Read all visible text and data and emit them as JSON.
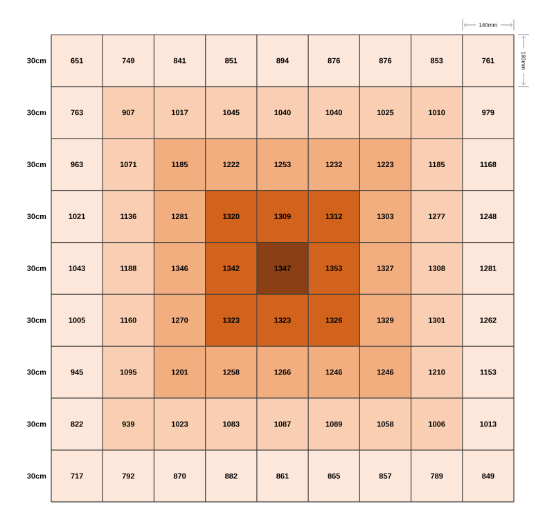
{
  "chart_data": {
    "type": "heatmap",
    "categories": [
      null,
      null,
      null,
      null,
      null,
      null,
      null,
      null,
      null
    ],
    "y_categories": [
      "30cm",
      "30cm",
      "30cm",
      "30cm",
      "30cm",
      "30cm",
      "30cm",
      "30cm",
      "30cm"
    ],
    "cells": [
      [
        651,
        749,
        841,
        851,
        894,
        876,
        876,
        853,
        761
      ],
      [
        763,
        907,
        1017,
        1045,
        1040,
        1040,
        1025,
        1010,
        979
      ],
      [
        963,
        1071,
        1185,
        1222,
        1253,
        1232,
        1223,
        1185,
        1168
      ],
      [
        1021,
        1136,
        1281,
        1320,
        1309,
        1312,
        1303,
        1277,
        1248
      ],
      [
        1043,
        1188,
        1346,
        1342,
        1347,
        1353,
        1327,
        1308,
        1281
      ],
      [
        1005,
        1160,
        1270,
        1323,
        1323,
        1326,
        1329,
        1301,
        1262
      ],
      [
        945,
        1095,
        1201,
        1258,
        1266,
        1246,
        1246,
        1210,
        1153
      ],
      [
        822,
        939,
        1023,
        1083,
        1087,
        1089,
        1058,
        1006,
        1013
      ],
      [
        717,
        792,
        870,
        882,
        861,
        865,
        857,
        789,
        849
      ]
    ],
    "colors": [
      [
        "#fde6da",
        "#fde6da",
        "#fde6da",
        "#fde6da",
        "#fde6da",
        "#fde6da",
        "#fde6da",
        "#fde6da",
        "#fde6da"
      ],
      [
        "#fde6da",
        "#f9ceb2",
        "#f9ceb2",
        "#f9ceb2",
        "#f9ceb2",
        "#f9ceb2",
        "#f9ceb2",
        "#f9ceb2",
        "#fde6da"
      ],
      [
        "#fde6da",
        "#f9ceb2",
        "#f3ae80",
        "#f3ae80",
        "#f3ae80",
        "#f3ae80",
        "#f3ae80",
        "#f9ceb2",
        "#fde6da"
      ],
      [
        "#fde6da",
        "#f9ceb2",
        "#f3ae80",
        "#d2631c",
        "#d2631c",
        "#d2631c",
        "#f3ae80",
        "#f9ceb2",
        "#fde6da"
      ],
      [
        "#fde6da",
        "#f9ceb2",
        "#f3ae80",
        "#d2631c",
        "#8a3f14",
        "#d2631c",
        "#f3ae80",
        "#f9ceb2",
        "#fde6da"
      ],
      [
        "#fde6da",
        "#f9ceb2",
        "#f3ae80",
        "#d2631c",
        "#d2631c",
        "#d2631c",
        "#f3ae80",
        "#f9ceb2",
        "#fde6da"
      ],
      [
        "#fde6da",
        "#f9ceb2",
        "#f3ae80",
        "#f3ae80",
        "#f3ae80",
        "#f3ae80",
        "#f3ae80",
        "#f9ceb2",
        "#fde6da"
      ],
      [
        "#fde6da",
        "#f9ceb2",
        "#f9ceb2",
        "#f9ceb2",
        "#f9ceb2",
        "#f9ceb2",
        "#f9ceb2",
        "#f9ceb2",
        "#fde6da"
      ],
      [
        "#fde6da",
        "#fde6da",
        "#fde6da",
        "#fde6da",
        "#fde6da",
        "#fde6da",
        "#fde6da",
        "#fde6da",
        "#fde6da"
      ]
    ],
    "data_labels": true,
    "annotations": [
      "140mm",
      "160mm"
    ]
  }
}
